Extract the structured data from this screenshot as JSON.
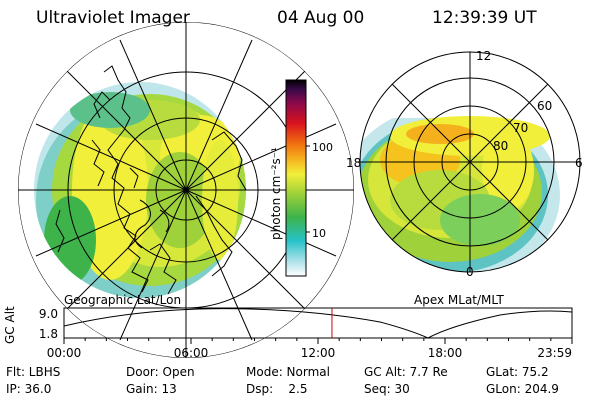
{
  "header": {
    "title": "Ultraviolet Imager",
    "date": "04 Aug 00",
    "time": "12:39:39 UT"
  },
  "left_panel": {
    "caption": "Geographic Lat/Lon"
  },
  "right_panel": {
    "caption": "Apex MLat/MLT",
    "mlt_labels": [
      "12",
      "18",
      "6",
      "0"
    ],
    "lat_labels": [
      "60",
      "70",
      "80"
    ]
  },
  "colorbar": {
    "label": "photon cm⁻²s⁻¹",
    "ticks": [
      "100",
      "10"
    ],
    "colors": [
      "#ffffff",
      "#a8e0e8",
      "#26c2c8",
      "#3db34a",
      "#9fd13a",
      "#f2ef3a",
      "#f5b01e",
      "#f06b10",
      "#d8121e",
      "#8c0a4a",
      "#3a0a4a",
      "#000000"
    ]
  },
  "timeline": {
    "axis_label": "GC Alt",
    "y_ticks": [
      "9.0",
      "1.8"
    ],
    "x_ticks": [
      "00:00",
      "06:00",
      "12:00",
      "18:00",
      "23:59"
    ],
    "marker_time_hours": 12.66
  },
  "status": {
    "row1": [
      {
        "label": "Flt: LBHS"
      },
      {
        "label": "Door: Open"
      },
      {
        "label": "Mode: Normal"
      },
      {
        "label": "GC Alt: 7.7 Re"
      },
      {
        "label": "GLat: 75.2"
      }
    ],
    "row2": [
      {
        "label": "IP: 36.0"
      },
      {
        "label": "Gain: 13"
      },
      {
        "label": "Dsp:    2.5"
      },
      {
        "label": "Seq: 30"
      },
      {
        "label": "GLon: 204.9"
      }
    ]
  }
}
